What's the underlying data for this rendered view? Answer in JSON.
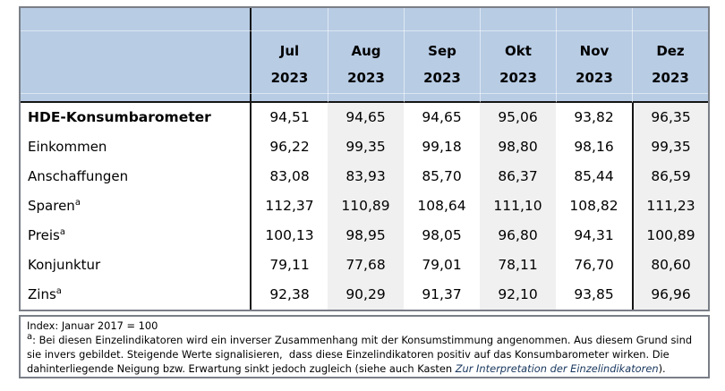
{
  "table": {
    "columns": [
      {
        "month": "Jul",
        "year": "2023"
      },
      {
        "month": "Aug",
        "year": "2023"
      },
      {
        "month": "Sep",
        "year": "2023"
      },
      {
        "month": "Okt",
        "year": "2023"
      },
      {
        "month": "Nov",
        "year": "2023"
      },
      {
        "month": "Dez",
        "year": "2023"
      }
    ],
    "rows": [
      {
        "label": "HDE-Konsumbarometer",
        "values": [
          "94,51",
          "94,65",
          "94,65",
          "95,06",
          "93,82",
          "96,35"
        ]
      },
      {
        "label": "Einkommen",
        "values": [
          "96,22",
          "99,35",
          "99,18",
          "98,80",
          "98,16",
          "99,35"
        ]
      },
      {
        "label": "Anschaffungen",
        "values": [
          "83,08",
          "83,93",
          "85,70",
          "86,37",
          "85,44",
          "86,59"
        ]
      },
      {
        "label": "Sparen",
        "sup": "a",
        "values": [
          "112,37",
          "110,89",
          "108,64",
          "111,10",
          "108,82",
          "111,23"
        ]
      },
      {
        "label": "Preis",
        "sup": "a",
        "values": [
          "100,13",
          "98,95",
          "98,05",
          "96,80",
          "94,31",
          "100,89"
        ]
      },
      {
        "label": "Konjunktur",
        "values": [
          "79,11",
          "77,68",
          "79,01",
          "78,11",
          "76,70",
          "80,60"
        ]
      },
      {
        "label": "Zins",
        "sup": "a",
        "values": [
          "92,38",
          "90,29",
          "91,37",
          "92,10",
          "93,85",
          "96,96"
        ]
      }
    ]
  },
  "footer": {
    "index_note": "Index: Januar 2017 = 100",
    "footnote_sup": "a",
    "footnote_text": ": Bei diesen Einzelindikatoren wird ein inverser Zusammenhang mit der Konsumstimmung angenommen. Aus diesem Grund sind sie invers gebildet. Steigende Werte signalisieren,  dass diese Einzelindikatoren positiv auf das Konsumbarometer wirken. Die dahinterliegende Neigung bzw. Erwartung sinkt jedoch zugleich (siehe auch Kasten ",
    "footnote_italic": "Zur Interpretation der Einzelindikatoren",
    "footnote_end": ")."
  },
  "colors": {
    "header_bg": "#b8cce4",
    "stripe_bg": "#f0f0f0",
    "border_dark": "#151515",
    "border_outer": "#7a7f87",
    "footnote_accent": "#17365d"
  }
}
